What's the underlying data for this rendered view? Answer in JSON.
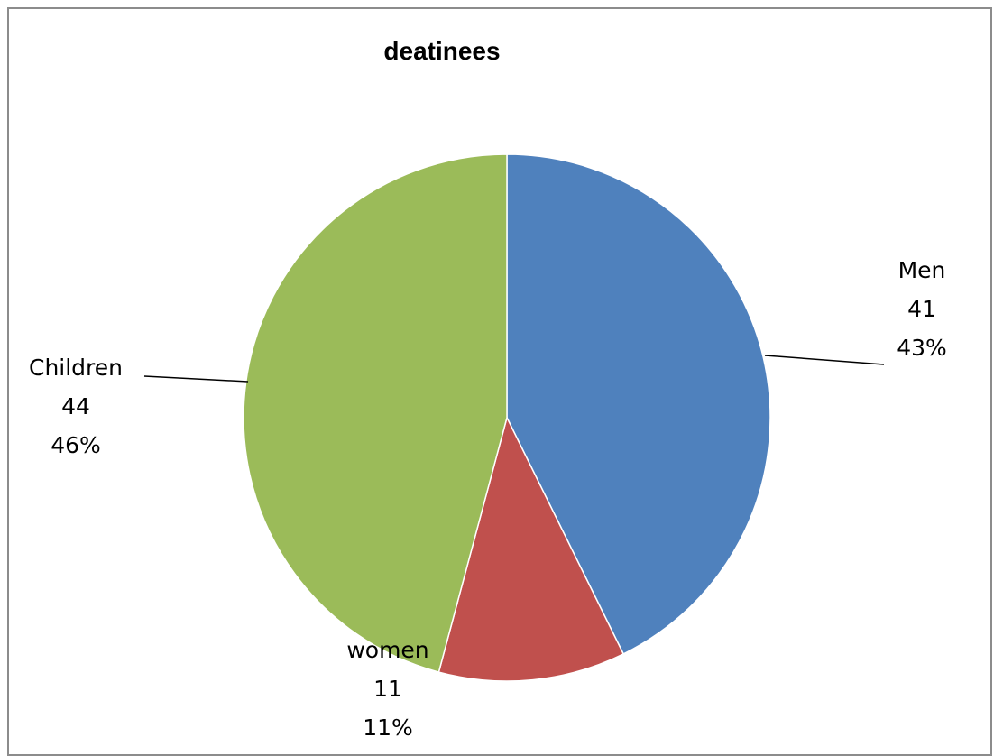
{
  "chart_data": {
    "type": "pie",
    "title": "deatinees",
    "slices": [
      {
        "label": "Men",
        "value": 41,
        "percent": "43%",
        "color": "#4f81bd",
        "value_text": "41"
      },
      {
        "label": "women",
        "value": 11,
        "percent": "11%",
        "color": "#c0504d",
        "value_text": "11"
      },
      {
        "label": "Children",
        "value": 44,
        "percent": "46%",
        "color": "#9bbb59",
        "value_text": "44"
      }
    ],
    "start_angle": "12 o'clock",
    "direction": "clockwise",
    "legend": "none",
    "data_labels": "category name, value, percentage"
  }
}
